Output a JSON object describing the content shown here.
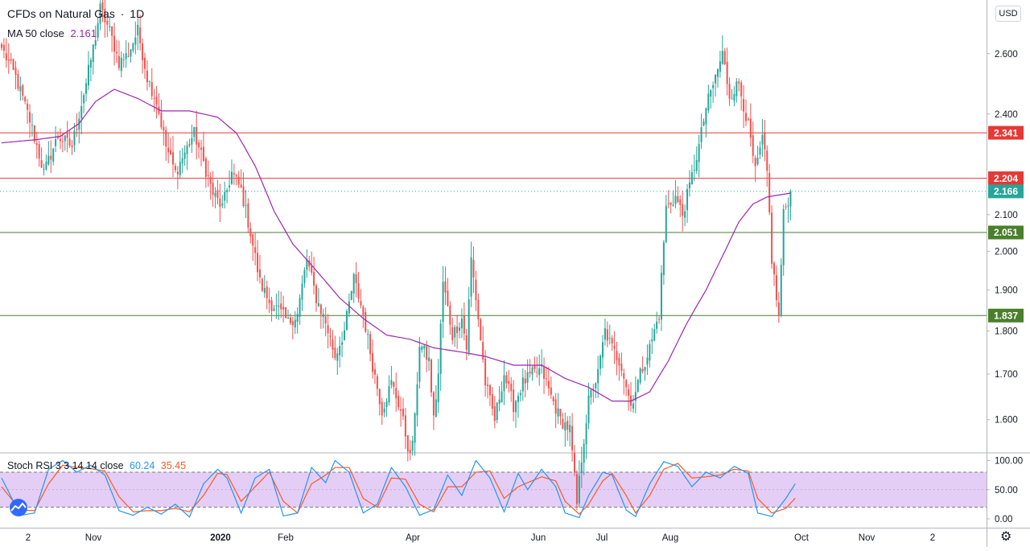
{
  "header": {
    "title": "CFDs on Natural Gas",
    "separator": "·",
    "interval": "1D",
    "ma_label": "MA 50 close",
    "ma_value": "2.161",
    "stoch_label": "Stoch RSI 3 3 14 14 close",
    "stoch_k": "60.24",
    "stoch_d": "35.45",
    "currency": "USD"
  },
  "colors": {
    "up": "#26a69a",
    "down": "#ef5350",
    "ma": "#9c27b0",
    "resistance": "#e53935",
    "support": "#4a7f2c",
    "stoch_k": "#2196f3",
    "stoch_d": "#ff5722",
    "stoch_band": "#e1c6f5",
    "current": "#26a69a"
  },
  "chart_data": [
    {
      "type": "candlestick",
      "ylim": [
        1.33,
        3.0
      ],
      "y_scale": "log",
      "yticks": [
        "1.370",
        "1.440",
        "1.520",
        "1.600",
        "1.700",
        "1.800",
        "1.900",
        "2.000",
        "2.100",
        "2.400",
        "2.600",
        "2.800",
        "3.000"
      ],
      "x_labels": [
        "2",
        "Nov",
        "2020",
        "Feb",
        "Apr",
        "Jun",
        "Jul",
        "Aug",
        "Oct",
        "Nov",
        "2"
      ],
      "horizontal_lines": [
        {
          "value": 2.341,
          "label": "2.341",
          "kind": "resistance"
        },
        {
          "value": 2.204,
          "label": "2.204",
          "kind": "resistance"
        },
        {
          "value": 2.051,
          "label": "2.051",
          "kind": "support"
        },
        {
          "value": 1.837,
          "label": "1.837",
          "kind": "support"
        }
      ],
      "current_price": {
        "value": 2.166,
        "label": "2.166"
      },
      "close_anchors": [
        [
          0,
          2.62
        ],
        [
          6,
          2.52
        ],
        [
          12,
          2.38
        ],
        [
          18,
          2.22
        ],
        [
          24,
          2.33
        ],
        [
          30,
          2.3
        ],
        [
          36,
          2.5
        ],
        [
          40,
          2.66
        ],
        [
          42,
          2.76
        ],
        [
          46,
          2.68
        ],
        [
          50,
          2.57
        ],
        [
          54,
          2.6
        ],
        [
          58,
          2.68
        ],
        [
          62,
          2.52
        ],
        [
          66,
          2.44
        ],
        [
          70,
          2.3
        ],
        [
          74,
          2.22
        ],
        [
          78,
          2.28
        ],
        [
          82,
          2.34
        ],
        [
          86,
          2.25
        ],
        [
          90,
          2.16
        ],
        [
          94,
          2.12
        ],
        [
          98,
          2.22
        ],
        [
          102,
          2.17
        ],
        [
          106,
          2.05
        ],
        [
          110,
          1.92
        ],
        [
          114,
          1.87
        ],
        [
          118,
          1.85
        ],
        [
          122,
          1.82
        ],
        [
          126,
          1.84
        ],
        [
          130,
          1.98
        ],
        [
          134,
          1.88
        ],
        [
          138,
          1.82
        ],
        [
          142,
          1.74
        ],
        [
          146,
          1.8
        ],
        [
          150,
          1.93
        ],
        [
          154,
          1.84
        ],
        [
          158,
          1.72
        ],
        [
          162,
          1.62
        ],
        [
          166,
          1.68
        ],
        [
          170,
          1.62
        ],
        [
          174,
          1.52
        ],
        [
          176,
          1.6
        ],
        [
          178,
          1.77
        ],
        [
          182,
          1.73
        ],
        [
          184,
          1.6
        ],
        [
          186,
          1.7
        ],
        [
          188,
          1.92
        ],
        [
          192,
          1.79
        ],
        [
          196,
          1.83
        ],
        [
          198,
          1.76
        ],
        [
          200,
          1.98
        ],
        [
          204,
          1.78
        ],
        [
          206,
          1.68
        ],
        [
          210,
          1.6
        ],
        [
          214,
          1.7
        ],
        [
          218,
          1.63
        ],
        [
          222,
          1.68
        ],
        [
          226,
          1.7
        ],
        [
          230,
          1.71
        ],
        [
          234,
          1.65
        ],
        [
          238,
          1.6
        ],
        [
          242,
          1.58
        ],
        [
          245,
          1.43
        ],
        [
          247,
          1.52
        ],
        [
          250,
          1.64
        ],
        [
          254,
          1.7
        ],
        [
          257,
          1.8
        ],
        [
          260,
          1.76
        ],
        [
          264,
          1.72
        ],
        [
          268,
          1.63
        ],
        [
          272,
          1.7
        ],
        [
          276,
          1.76
        ],
        [
          280,
          1.84
        ],
        [
          283,
          2.12
        ],
        [
          287,
          2.15
        ],
        [
          290,
          2.1
        ],
        [
          293,
          2.18
        ],
        [
          297,
          2.3
        ],
        [
          300,
          2.42
        ],
        [
          304,
          2.52
        ],
        [
          307,
          2.6
        ],
        [
          310,
          2.46
        ],
        [
          314,
          2.5
        ],
        [
          318,
          2.36
        ],
        [
          321,
          2.22
        ],
        [
          324,
          2.32
        ],
        [
          326,
          2.22
        ],
        [
          328,
          1.98
        ],
        [
          331,
          1.83
        ],
        [
          333,
          2.1
        ],
        [
          336,
          2.166
        ]
      ],
      "ma50_anchors": [
        [
          0,
          2.31
        ],
        [
          15,
          2.32
        ],
        [
          25,
          2.33
        ],
        [
          33,
          2.37
        ],
        [
          40,
          2.44
        ],
        [
          48,
          2.48
        ],
        [
          58,
          2.45
        ],
        [
          68,
          2.41
        ],
        [
          80,
          2.41
        ],
        [
          92,
          2.39
        ],
        [
          100,
          2.34
        ],
        [
          108,
          2.24
        ],
        [
          116,
          2.11
        ],
        [
          124,
          2.02
        ],
        [
          134,
          1.95
        ],
        [
          144,
          1.88
        ],
        [
          154,
          1.83
        ],
        [
          164,
          1.79
        ],
        [
          174,
          1.78
        ],
        [
          184,
          1.76
        ],
        [
          196,
          1.75
        ],
        [
          206,
          1.74
        ],
        [
          218,
          1.72
        ],
        [
          230,
          1.72
        ],
        [
          240,
          1.69
        ],
        [
          250,
          1.67
        ],
        [
          260,
          1.64
        ],
        [
          268,
          1.64
        ],
        [
          276,
          1.66
        ],
        [
          284,
          1.73
        ],
        [
          292,
          1.82
        ],
        [
          300,
          1.9
        ],
        [
          308,
          2.0
        ],
        [
          314,
          2.08
        ],
        [
          320,
          2.13
        ],
        [
          326,
          2.15
        ],
        [
          336,
          2.161
        ]
      ]
    },
    {
      "type": "line",
      "title": "Stoch RSI 3 3 14 14 close",
      "ylim": [
        0,
        100
      ],
      "yticks": [
        "0.00",
        "50.00",
        "100.00"
      ],
      "bands": [
        20,
        80
      ],
      "k_anchors": [
        [
          0,
          70
        ],
        [
          8,
          6
        ],
        [
          14,
          10
        ],
        [
          20,
          85
        ],
        [
          26,
          100
        ],
        [
          32,
          80
        ],
        [
          38,
          92
        ],
        [
          44,
          75
        ],
        [
          50,
          14
        ],
        [
          56,
          6
        ],
        [
          62,
          20
        ],
        [
          68,
          8
        ],
        [
          74,
          25
        ],
        [
          80,
          3
        ],
        [
          86,
          60
        ],
        [
          92,
          85
        ],
        [
          96,
          70
        ],
        [
          102,
          10
        ],
        [
          108,
          70
        ],
        [
          114,
          85
        ],
        [
          120,
          5
        ],
        [
          126,
          10
        ],
        [
          132,
          88
        ],
        [
          138,
          62
        ],
        [
          142,
          100
        ],
        [
          148,
          80
        ],
        [
          154,
          10
        ],
        [
          160,
          25
        ],
        [
          166,
          88
        ],
        [
          172,
          55
        ],
        [
          178,
          6
        ],
        [
          184,
          16
        ],
        [
          190,
          75
        ],
        [
          196,
          40
        ],
        [
          202,
          100
        ],
        [
          208,
          70
        ],
        [
          214,
          12
        ],
        [
          220,
          78
        ],
        [
          224,
          50
        ],
        [
          230,
          85
        ],
        [
          236,
          55
        ],
        [
          240,
          10
        ],
        [
          246,
          2
        ],
        [
          250,
          40
        ],
        [
          256,
          80
        ],
        [
          260,
          75
        ],
        [
          266,
          15
        ],
        [
          270,
          4
        ],
        [
          276,
          60
        ],
        [
          282,
          98
        ],
        [
          288,
          90
        ],
        [
          294,
          55
        ],
        [
          300,
          80
        ],
        [
          306,
          70
        ],
        [
          312,
          90
        ],
        [
          318,
          78
        ],
        [
          322,
          10
        ],
        [
          328,
          4
        ],
        [
          334,
          35
        ],
        [
          338,
          60.24
        ]
      ],
      "d_anchors": [
        [
          0,
          55
        ],
        [
          8,
          15
        ],
        [
          14,
          14
        ],
        [
          20,
          60
        ],
        [
          26,
          92
        ],
        [
          32,
          88
        ],
        [
          38,
          86
        ],
        [
          44,
          82
        ],
        [
          50,
          38
        ],
        [
          56,
          12
        ],
        [
          62,
          14
        ],
        [
          68,
          14
        ],
        [
          74,
          18
        ],
        [
          80,
          12
        ],
        [
          86,
          40
        ],
        [
          92,
          78
        ],
        [
          96,
          76
        ],
        [
          102,
          30
        ],
        [
          108,
          55
        ],
        [
          114,
          80
        ],
        [
          120,
          30
        ],
        [
          126,
          10
        ],
        [
          132,
          60
        ],
        [
          138,
          75
        ],
        [
          142,
          88
        ],
        [
          148,
          88
        ],
        [
          154,
          35
        ],
        [
          160,
          20
        ],
        [
          166,
          70
        ],
        [
          172,
          68
        ],
        [
          178,
          25
        ],
        [
          184,
          12
        ],
        [
          190,
          55
        ],
        [
          196,
          55
        ],
        [
          202,
          80
        ],
        [
          208,
          82
        ],
        [
          214,
          35
        ],
        [
          220,
          55
        ],
        [
          224,
          62
        ],
        [
          230,
          72
        ],
        [
          236,
          65
        ],
        [
          240,
          30
        ],
        [
          246,
          8
        ],
        [
          250,
          25
        ],
        [
          256,
          65
        ],
        [
          260,
          78
        ],
        [
          266,
          40
        ],
        [
          270,
          10
        ],
        [
          276,
          40
        ],
        [
          282,
          85
        ],
        [
          288,
          95
        ],
        [
          294,
          70
        ],
        [
          300,
          72
        ],
        [
          306,
          75
        ],
        [
          312,
          85
        ],
        [
          318,
          82
        ],
        [
          322,
          35
        ],
        [
          328,
          10
        ],
        [
          334,
          18
        ],
        [
          338,
          35.45
        ]
      ]
    }
  ]
}
